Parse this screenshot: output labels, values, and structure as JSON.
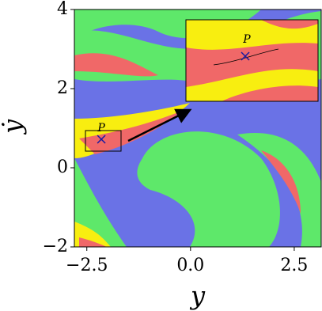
{
  "chart_data": {
    "type": "basin",
    "xlabel": "y",
    "ylabel": "ẏ",
    "xlim": [
      -2.8,
      3.15
    ],
    "ylim": [
      -2,
      4
    ],
    "xticks": [
      {
        "value": -2.5,
        "label": "−2.5"
      },
      {
        "value": 0,
        "label": "0.0"
      },
      2.5
    ],
    "yticks": [
      {
        "value": -2,
        "label": "−2"
      },
      0,
      2,
      4
    ],
    "point": {
      "label": "P",
      "x": -2.15,
      "y": 0.72,
      "color": "#1a1aa0"
    }
  }
}
